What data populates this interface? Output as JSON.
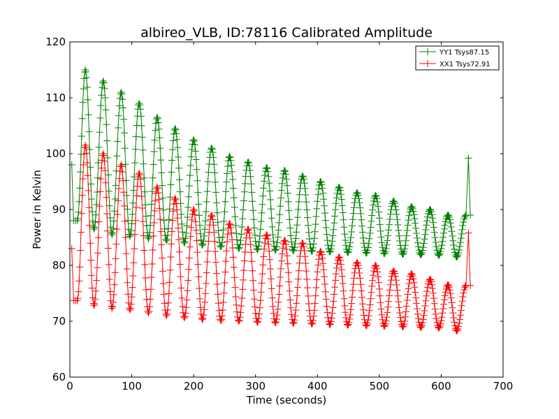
{
  "chart_data": {
    "type": "line",
    "title": "albireo_VLB, ID:78116 Calibrated Amplitude",
    "xlabel": "Time (seconds)",
    "ylabel": "Power in Kelvin",
    "xlim": [
      0,
      700
    ],
    "ylim": [
      60,
      120
    ],
    "xticks": [
      "0",
      "100",
      "200",
      "300",
      "400",
      "500",
      "600",
      "700"
    ],
    "yticks": [
      "60",
      "70",
      "80",
      "90",
      "100",
      "110",
      "120"
    ],
    "grid": false,
    "legend_position": "top-right",
    "marker": "plus",
    "oscillation_period_seconds": 29.3,
    "series": [
      {
        "name": "YY1 Tsys87.15",
        "color": "#008000",
        "start_points": [
          [
            3,
            98
          ],
          [
            6,
            88
          ],
          [
            9,
            88
          ],
          [
            12,
            88
          ]
        ],
        "peaks": [
          [
            25,
            115
          ],
          [
            54,
            113
          ],
          [
            83,
            111
          ],
          [
            112,
            109
          ],
          [
            141,
            106.5
          ],
          [
            170,
            104.5
          ],
          [
            200,
            102.5
          ],
          [
            229,
            101
          ],
          [
            258,
            99.5
          ],
          [
            288,
            98.5
          ],
          [
            318,
            97.5
          ],
          [
            347,
            97
          ],
          [
            376,
            96
          ],
          [
            405,
            95
          ],
          [
            435,
            94
          ],
          [
            464,
            93
          ],
          [
            494,
            92.5
          ],
          [
            523,
            91.5
          ],
          [
            552,
            90.5
          ],
          [
            582,
            90
          ],
          [
            611,
            89
          ]
        ],
        "troughs": [
          [
            39,
            86.5
          ],
          [
            68,
            85.5
          ],
          [
            97,
            85.2
          ],
          [
            127,
            84.8
          ],
          [
            156,
            84.4
          ],
          [
            185,
            84
          ],
          [
            214,
            83.6
          ],
          [
            244,
            83.3
          ],
          [
            273,
            83
          ],
          [
            303,
            82.8
          ],
          [
            332,
            82.7
          ],
          [
            361,
            82.6
          ],
          [
            391,
            82.5
          ],
          [
            420,
            82.4
          ],
          [
            449,
            82.3
          ],
          [
            479,
            82.2
          ],
          [
            508,
            82.1
          ],
          [
            538,
            82
          ],
          [
            567,
            81.9
          ],
          [
            596,
            81.8
          ],
          [
            625,
            81.5
          ]
        ],
        "end_points": [
          [
            640,
            89
          ],
          [
            644,
            99.2
          ],
          [
            647,
            89
          ]
        ]
      },
      {
        "name": "XX1 Tsys72.91",
        "color": "#ff0000",
        "start_points": [
          [
            3,
            83
          ],
          [
            6,
            73.7
          ],
          [
            9,
            73.7
          ],
          [
            12,
            73.7
          ]
        ],
        "peaks": [
          [
            25,
            101.5
          ],
          [
            54,
            100
          ],
          [
            83,
            98
          ],
          [
            112,
            96.5
          ],
          [
            141,
            94
          ],
          [
            170,
            92
          ],
          [
            200,
            90
          ],
          [
            229,
            89
          ],
          [
            258,
            87.5
          ],
          [
            288,
            86.5
          ],
          [
            318,
            85.5
          ],
          [
            347,
            84.5
          ],
          [
            376,
            84
          ],
          [
            405,
            82.5
          ],
          [
            435,
            81.5
          ],
          [
            464,
            80.5
          ],
          [
            494,
            80
          ],
          [
            523,
            79
          ],
          [
            552,
            78.5
          ],
          [
            582,
            77.5
          ],
          [
            611,
            76.5
          ]
        ],
        "troughs": [
          [
            39,
            72.8
          ],
          [
            68,
            72.3
          ],
          [
            97,
            72
          ],
          [
            127,
            71.5
          ],
          [
            156,
            71
          ],
          [
            185,
            70.6
          ],
          [
            214,
            70.3
          ],
          [
            244,
            70.1
          ],
          [
            273,
            70
          ],
          [
            303,
            69.8
          ],
          [
            332,
            69.7
          ],
          [
            361,
            69.6
          ],
          [
            391,
            69.5
          ],
          [
            420,
            69.4
          ],
          [
            449,
            69.3
          ],
          [
            479,
            69.2
          ],
          [
            508,
            69.1
          ],
          [
            538,
            69
          ],
          [
            567,
            68.9
          ],
          [
            596,
            68.8
          ],
          [
            625,
            68.3
          ]
        ],
        "end_points": [
          [
            640,
            76.4
          ],
          [
            644,
            85.8
          ],
          [
            647,
            76.4
          ]
        ]
      }
    ]
  }
}
